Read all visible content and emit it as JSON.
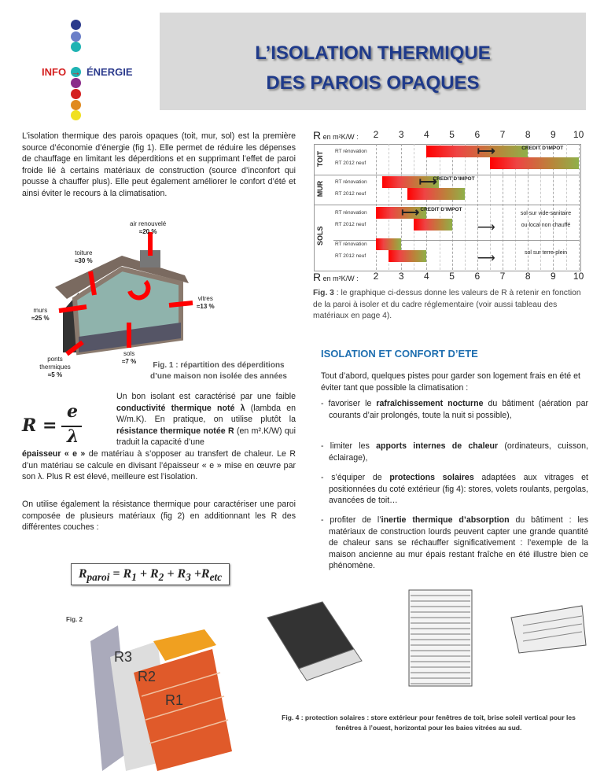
{
  "logo": {
    "left": "INFO",
    "right": "ÉNERGIE",
    "colors": [
      "#2b3a8c",
      "#6b7fc8",
      "#1fb3b3",
      "#1fb3b3",
      "#8b2d8b",
      "#d42020",
      "#e08a20",
      "#f0e020"
    ]
  },
  "title": {
    "line1": "L’ISOLATION THERMIQUE",
    "line2": "DES PAROIS OPAQUES"
  },
  "intro": "L’isolation thermique des parois opaques (toit, mur, sol) est la première source d’économie d’énergie (fig 1). Elle permet de réduire les dépenses de chauffage en limitant les déperditions et en supprimant l’effet de paroi froide lié à certains matériaux de construction (source d’inconfort qui pousse à chauffer plus). Elle peut également améliorer le confort d’été et ainsi éviter le recours à la climatisation.",
  "fig1": {
    "labels": {
      "air": "air renouvelé",
      "air_val": "≈20 %",
      "toit": "toiture",
      "toit_val": "≈30 %",
      "murs": "murs",
      "murs_val": "≈25 %",
      "vitres": "vitres",
      "vitres_val": "≈13 %",
      "sols": "sols",
      "sols_val": "≈7 %",
      "ponts": "ponts thermiques",
      "ponts_val": "≈5 %"
    },
    "caption1": "Fig. 1 : répartition des déperditions",
    "caption2": "d’une maison non isolée des années"
  },
  "chart_data": {
    "type": "bar",
    "axis_label": "R en m²K/W :",
    "xlim": [
      2,
      10
    ],
    "ticks": [
      "2",
      "3",
      "4",
      "5",
      "6",
      "7",
      "8",
      "9",
      "10"
    ],
    "sections": [
      "TOIT",
      "MUR",
      "SOLS"
    ],
    "row_labels": {
      "renov": "RT rénovation",
      "neuf": "RT 2012 neuf"
    },
    "credit_label": "CREDIT D’IMPOT",
    "series": [
      {
        "section": "TOIT",
        "row": "RT rénovation",
        "from": 4,
        "to": 8,
        "credit_from": 6,
        "credit_to": 8
      },
      {
        "section": "TOIT",
        "row": "RT 2012 neuf",
        "from": 6.5,
        "to": 10
      },
      {
        "section": "MUR",
        "row": "RT rénovation",
        "from": 2.25,
        "to": 4.5,
        "credit_from": 3.7,
        "credit_to": 4.5
      },
      {
        "section": "MUR",
        "row": "RT 2012 neuf",
        "from": 3.25,
        "to": 5.5
      },
      {
        "section": "SOLS",
        "row": "RT rénovation",
        "from": 2,
        "to": 4,
        "credit_from": 3,
        "credit_to": 4
      },
      {
        "section": "SOLS",
        "row": "RT 2012 neuf",
        "from": 3.5,
        "to": 5
      },
      {
        "section": "SOLS",
        "row": "RT rénovation",
        "from": 2,
        "to": 3
      },
      {
        "section": "SOLS",
        "row": "RT 2012 neuf",
        "from": 2.5,
        "to": 4
      }
    ],
    "annotations": [
      "sol sur vide-sanitaire",
      "ou local non chauffé",
      "sol sur terre-plein"
    ]
  },
  "fig3": {
    "bold": "Fig. 3",
    "text": " : le graphique ci-dessus  donne les valeurs de R à retenir en fonction de la paroi à isoler et du cadre réglementaire (voir aussi tableau des matériaux en page 4)."
  },
  "formula": {
    "R": "R",
    "eq": "=",
    "e": "e",
    "lambda": "λ"
  },
  "para1": {
    "a": "Un bon isolant est caractérisé par une faible ",
    "b": "conductivité thermique noté λ",
    "c": " (lambda en W/m.K). En pratique, on utilise plutôt la ",
    "d": "résistance thermique notée R",
    "e": " (en m².K/W) qui traduit la capacité d’une ",
    "f": "épaisseur « e »",
    "g": " de matériau à s’opposer au transfert de chaleur. Le R d’un matériau se calcule en divisant l’épaisseur « e » mise en œuvre par son λ. Plus R est élevé, meilleure est l’isolation."
  },
  "para2": "On utilise également la résistance thermique pour caractériser une paroi composée de plusieurs matériaux (fig 2) en additionnant les R des différentes couches :",
  "sum": {
    "R": "R",
    "paroi": "paroi",
    "rest": " = R",
    "s1": "1",
    "p2": " + R",
    "s2": "2",
    "p3": " + R",
    "s3": "3",
    "p4": " +R",
    "etc": "etc"
  },
  "fig2": {
    "label": "Fig. 2",
    "r3": "R3",
    "r2": "R2",
    "r1": "R1"
  },
  "ete": {
    "heading": "ISOLATION ET CONFORT D’ETE",
    "intro": "Tout d’abord, quelques pistes pour garder son logement frais en été et éviter tant que possible la climatisation :",
    "items": [
      {
        "a": "- favoriser le ",
        "b": "rafraîchissement nocturne",
        "c": " du bâtiment (aération par courants d’air prolongés, toute la nuit si possible),"
      },
      {
        "a": "- limiter les ",
        "b": "apports internes de chaleur",
        "c": " (ordinateurs, cuisson, éclairage),"
      },
      {
        "a": "- s’équiper de ",
        "b": "protections solaires",
        "c": " adaptées aux vitrages et positionnées du coté extérieur (fig 4): stores, volets roulants, pergolas, avancées de toit…"
      },
      {
        "a": "- profiter de l’",
        "b": "inertie thermique d’absorption",
        "c": " du bâtiment : les matériaux de construction lourds peuvent capter une grande quantité de chaleur sans se réchauffer significativement : l’exemple de la maison ancienne au mur épais restant fraîche en été illustre bien ce phénomène."
      }
    ]
  },
  "fig4": "Fig. 4 : protection solaires : store extérieur pour fenêtres de toit, brise soleil vertical pour les fenêtres à l’ouest, horizontal pour les baies vitrées au sud."
}
